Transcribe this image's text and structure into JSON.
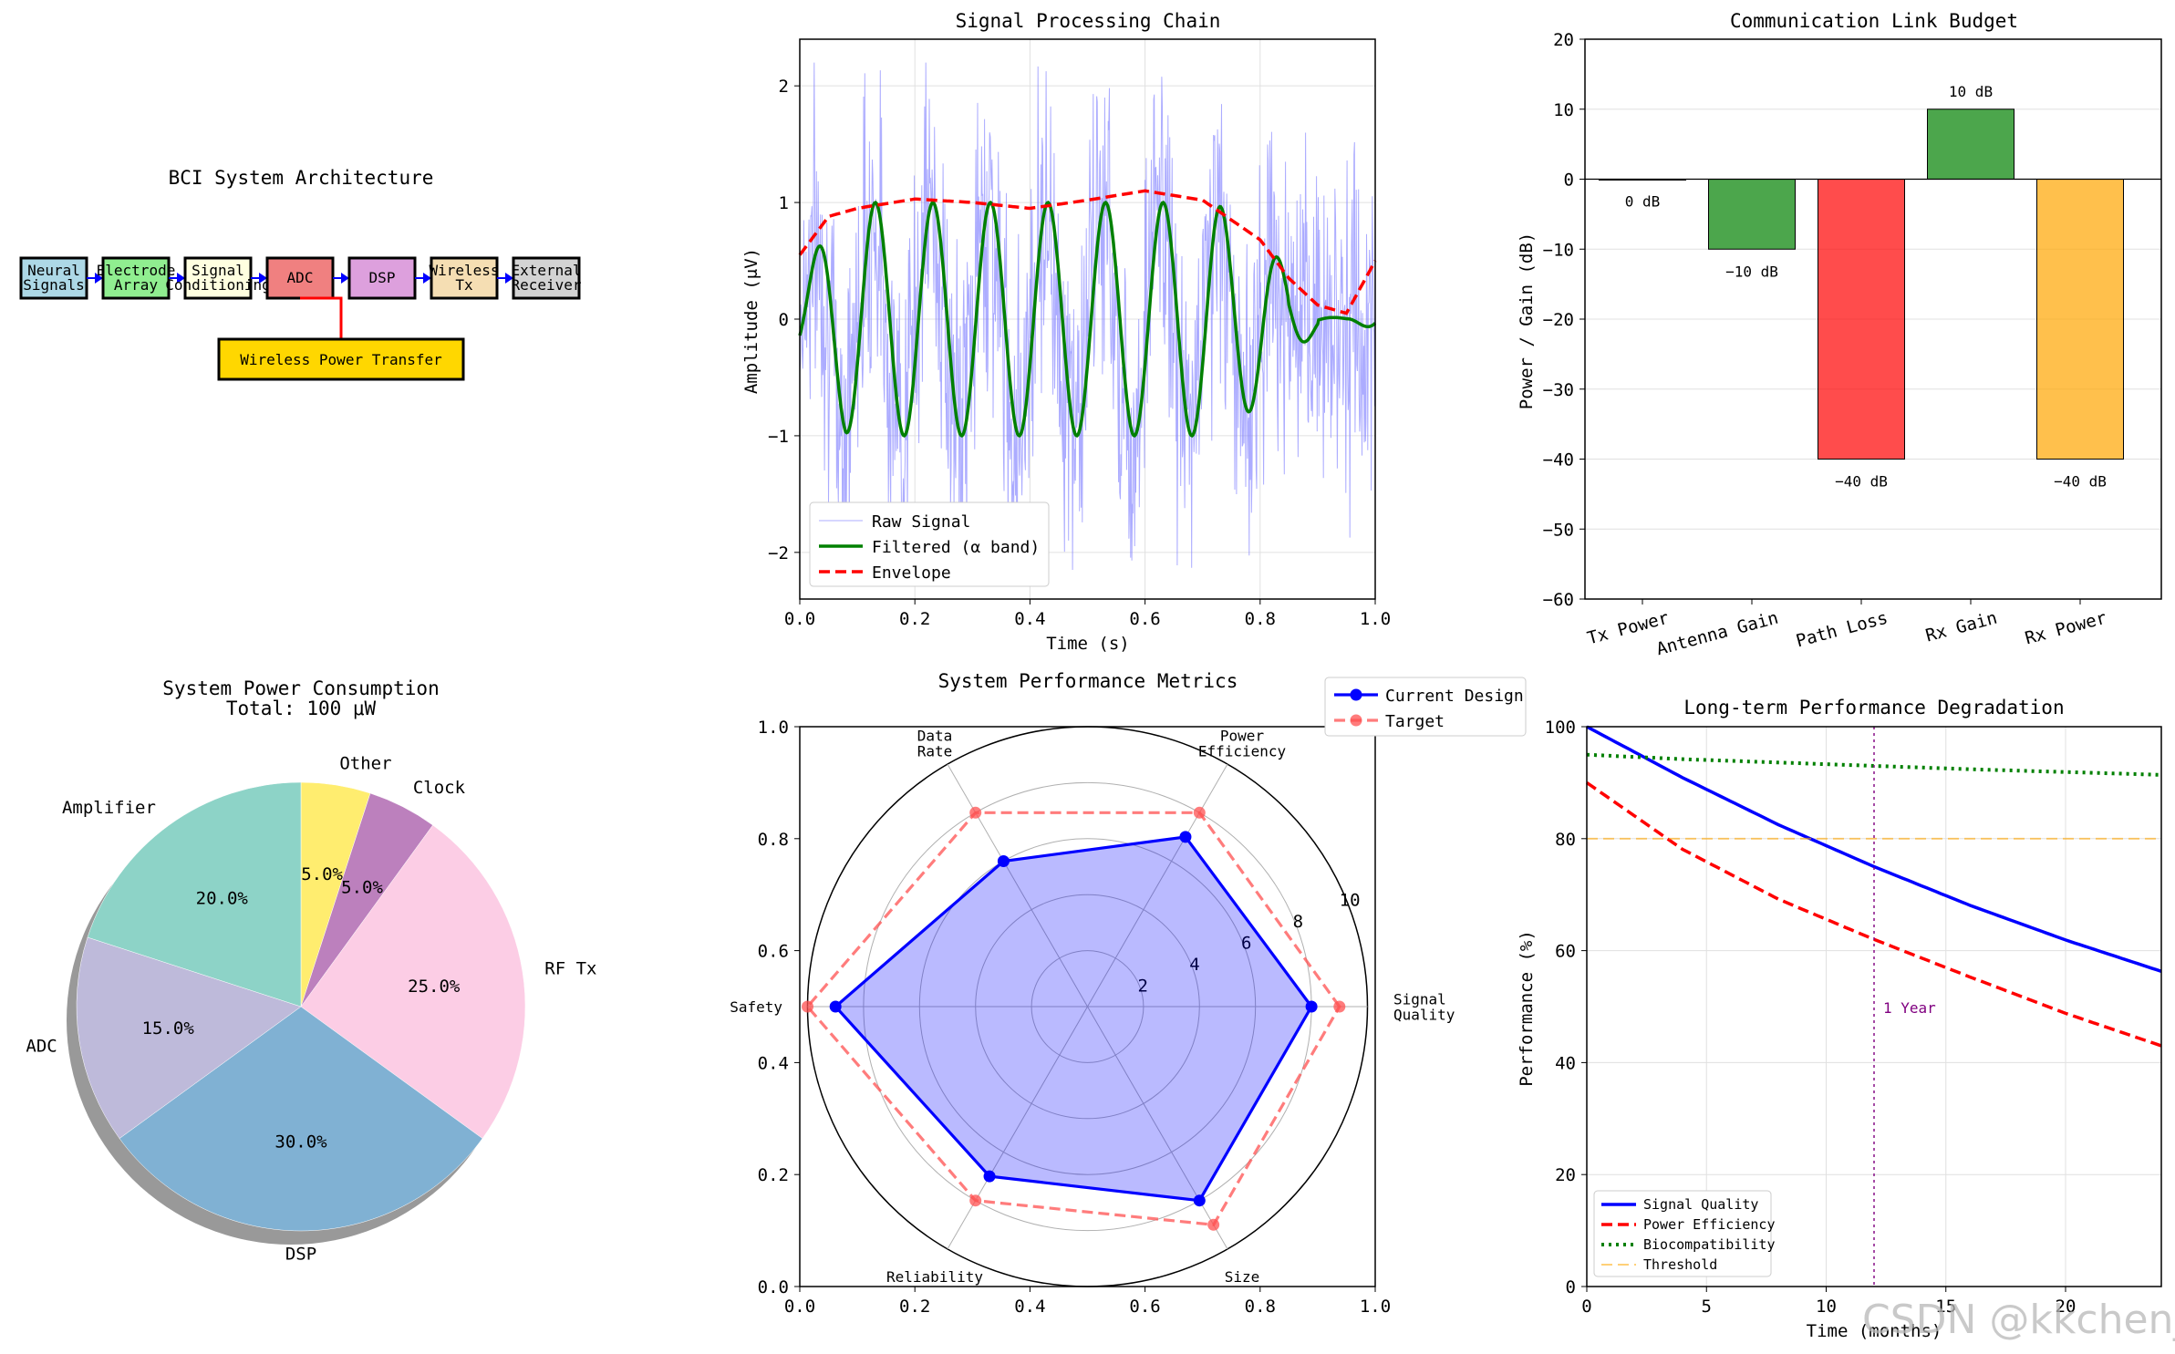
{
  "watermark": "CSDN @kkchenji",
  "colors": {
    "blue": "#0000ff",
    "green": "#008000",
    "red": "#ff0000",
    "purple": "#800080",
    "orange": "#ffa500"
  },
  "chart_data": [
    {
      "type": "diagram",
      "title": "BCI System Architecture",
      "blocks": [
        {
          "label": "Neural\nSignals",
          "color": "#add8e6"
        },
        {
          "label": "Electrode\nArray",
          "color": "#90ee90"
        },
        {
          "label": "Signal\nConditioning",
          "color": "#ffffe0"
        },
        {
          "label": "ADC",
          "color": "#f08080"
        },
        {
          "label": "DSP",
          "color": "#dda0dd"
        },
        {
          "label": "Wireless\nTx",
          "color": "#f5deb3"
        },
        {
          "label": "External\nReceiver",
          "color": "#d3d3d3"
        }
      ],
      "power_block": {
        "label": "Wireless Power Transfer",
        "color": "#ffd700"
      }
    },
    {
      "type": "line",
      "title": "Signal Processing Chain",
      "xlabel": "Time (s)",
      "ylabel": "Amplitude (μV)",
      "xlim": [
        0,
        1
      ],
      "ylim": [
        -2.4,
        2.4
      ],
      "xticks": [
        "0.0",
        "0.2",
        "0.4",
        "0.6",
        "0.8",
        "1.0"
      ],
      "yticks": [
        "−2",
        "−1",
        "0",
        "1",
        "2"
      ],
      "grid": true,
      "legend_position": "lower-left",
      "series": [
        {
          "name": "Raw Signal",
          "color": "#8080ff",
          "description": "noisy, approx ±2"
        },
        {
          "name": "Filtered (α band)",
          "color": "#008000",
          "frequency_hz": 10,
          "amplitude": 1.0
        },
        {
          "name": "Envelope",
          "color": "#ff0000",
          "x": [
            0,
            0.05,
            0.1,
            0.2,
            0.3,
            0.4,
            0.5,
            0.6,
            0.7,
            0.8,
            0.85,
            0.9,
            0.95,
            1.0
          ],
          "y": [
            0.55,
            0.88,
            0.95,
            1.03,
            1.0,
            0.95,
            1.02,
            1.1,
            1.02,
            0.68,
            0.35,
            0.12,
            0.05,
            0.5
          ]
        }
      ]
    },
    {
      "type": "bar",
      "title": "Communication Link Budget",
      "ylabel": "Power / Gain (dB)",
      "categories": [
        "Tx Power",
        "Antenna Gain",
        "Path Loss",
        "Rx Gain",
        "Rx Power"
      ],
      "values": [
        0,
        -10,
        -40,
        10,
        -40
      ],
      "value_labels": [
        "0 dB",
        "−10 dB",
        "−40 dB",
        "10 dB",
        "−40 dB"
      ],
      "colors": [
        "#008000",
        "#008000",
        "#ff0000",
        "#008000",
        "#ffa500"
      ],
      "ylim": [
        -60,
        20
      ],
      "yticks": [
        "−60",
        "−50",
        "−40",
        "−30",
        "−20",
        "−10",
        "0",
        "10",
        "20"
      ],
      "grid": true
    },
    {
      "type": "pie",
      "title": "System Power Consumption",
      "subtitle": "Total: 100 μW",
      "labels": [
        "Other",
        "Clock",
        "RF Tx",
        "DSP",
        "ADC",
        "Amplifier"
      ],
      "values": [
        5,
        5,
        25,
        30,
        15,
        20
      ],
      "pct_labels": [
        "5.0%",
        "5.0%",
        "25.0%",
        "30.0%",
        "15.0%",
        "20.0%"
      ],
      "colors": [
        "#ffed6f",
        "#bc80bd",
        "#fccde5",
        "#80b1d3",
        "#bebada",
        "#8dd3c7"
      ]
    },
    {
      "type": "radar",
      "title": "System Performance Metrics",
      "axes": [
        "Signal\nQuality",
        "Power\nEfficiency",
        "Data\nRate",
        "Safety",
        "Reliability",
        "Size"
      ],
      "rticks": [
        "2",
        "4",
        "6",
        "8",
        "10"
      ],
      "rlim": [
        0,
        10
      ],
      "frame_xticks": [
        "0.0",
        "0.2",
        "0.4",
        "0.6",
        "0.8",
        "1.0"
      ],
      "frame_yticks": [
        "0.0",
        "0.2",
        "0.4",
        "0.6",
        "0.8",
        "1.0"
      ],
      "legend_position": "upper-right",
      "series": [
        {
          "name": "Current Design",
          "color": "#0000ff",
          "values": [
            8,
            7,
            6,
            9,
            7,
            8
          ]
        },
        {
          "name": "Target",
          "color": "#ff5050",
          "values": [
            9,
            8,
            8,
            10,
            8,
            9
          ]
        }
      ]
    },
    {
      "type": "line",
      "title": "Long-term Performance Degradation",
      "xlabel": "Time (months)",
      "ylabel": "Performance (%)",
      "xlim": [
        0,
        24
      ],
      "ylim": [
        0,
        100
      ],
      "xticks": [
        "0",
        "5",
        "10",
        "15",
        "20"
      ],
      "yticks": [
        "0",
        "20",
        "40",
        "60",
        "80",
        "100"
      ],
      "grid": true,
      "legend_position": "lower-left",
      "vline": {
        "x": 12,
        "label": "1 Year",
        "color": "#800080"
      },
      "series": [
        {
          "name": "Signal Quality",
          "color": "#0000ff",
          "style": "solid",
          "x": [
            0,
            4,
            8,
            12,
            16,
            20,
            24
          ],
          "y": [
            100,
            90.9,
            82.5,
            75.0,
            68.1,
            61.9,
            56.3
          ]
        },
        {
          "name": "Power Efficiency",
          "color": "#ff0000",
          "style": "dashed",
          "x": [
            0,
            4,
            8,
            12,
            16,
            20,
            24
          ],
          "y": [
            90,
            78.1,
            69.2,
            62.0,
            55.3,
            48.8,
            43.0
          ]
        },
        {
          "name": "Biocompatibility",
          "color": "#008000",
          "style": "dotted",
          "x": [
            0,
            4,
            8,
            12,
            16,
            20,
            24
          ],
          "y": [
            95,
            94.2,
            93.6,
            93.0,
            92.4,
            91.9,
            91.4
          ]
        },
        {
          "name": "Threshold",
          "color": "#ffa500",
          "style": "dashed",
          "x": [
            0,
            24
          ],
          "y": [
            80,
            80
          ]
        }
      ]
    }
  ]
}
